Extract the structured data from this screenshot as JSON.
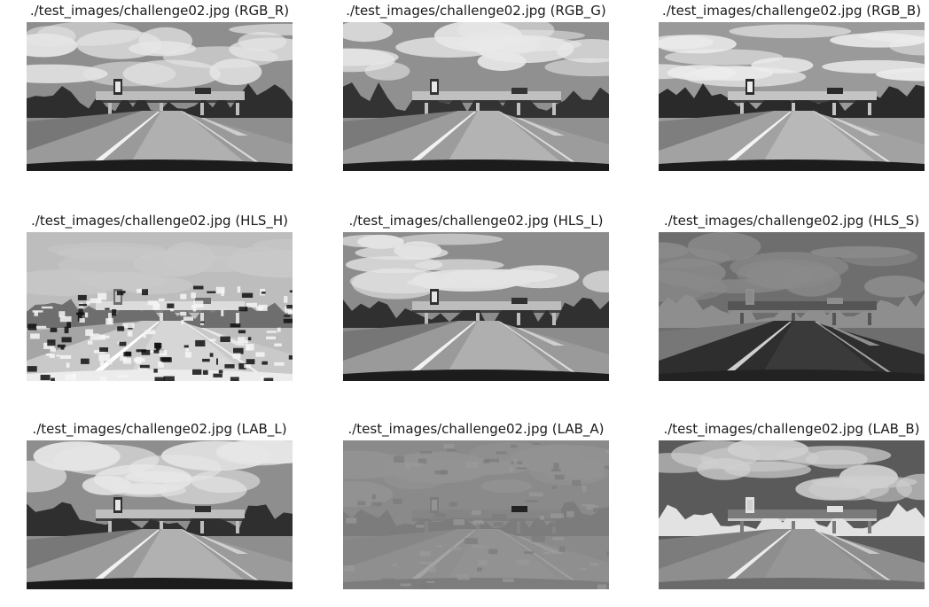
{
  "panels": [
    {
      "title": "./test_images/challenge02.jpg (RGB_R)",
      "channel": "RGB_R"
    },
    {
      "title": "./test_images/challenge02.jpg (RGB_G)",
      "channel": "RGB_G"
    },
    {
      "title": "./test_images/challenge02.jpg (RGB_B)",
      "channel": "RGB_B"
    },
    {
      "title": "./test_images/challenge02.jpg (HLS_H)",
      "channel": "HLS_H"
    },
    {
      "title": "./test_images/challenge02.jpg (HLS_L)",
      "channel": "HLS_L"
    },
    {
      "title": "./test_images/challenge02.jpg (HLS_S)",
      "channel": "HLS_S"
    },
    {
      "title": "./test_images/challenge02.jpg (LAB_L)",
      "channel": "LAB_L"
    },
    {
      "title": "./test_images/challenge02.jpg (LAB_A)",
      "channel": "LAB_A"
    },
    {
      "title": "./test_images/challenge02.jpg (LAB_B)",
      "channel": "LAB_B"
    }
  ]
}
